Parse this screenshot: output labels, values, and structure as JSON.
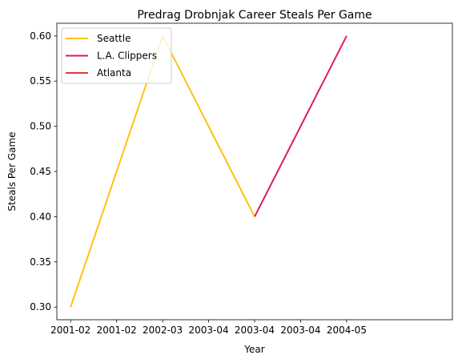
{
  "chart_data": {
    "type": "line",
    "title": "Predrag Drobnjak Career Steals Per Game",
    "xlabel": "Year",
    "ylabel": "Steals Per Game",
    "x_ticks": [
      "2001-02",
      "2001-02",
      "2002-03",
      "2003-04",
      "2003-04",
      "2003-04",
      "2004-05"
    ],
    "y_ticks": [
      "0.30",
      "0.35",
      "0.40",
      "0.45",
      "0.50",
      "0.55",
      "0.60"
    ],
    "ylim": [
      0.286,
      0.614
    ],
    "xlim": [
      -0.15,
      4.15
    ],
    "grid": false,
    "legend_position": "top-left",
    "series": [
      {
        "name": "Seattle",
        "color": "#FFC20E",
        "x": [
          0,
          1,
          2
        ],
        "y": [
          0.3,
          0.6,
          0.4
        ]
      },
      {
        "name": "L.A. Clippers",
        "color": "#E31C4E",
        "x": [
          2,
          3
        ],
        "y": [
          0.4,
          0.6
        ]
      },
      {
        "name": "Atlanta",
        "color": "#E03A3E",
        "x": [],
        "y": []
      }
    ]
  }
}
